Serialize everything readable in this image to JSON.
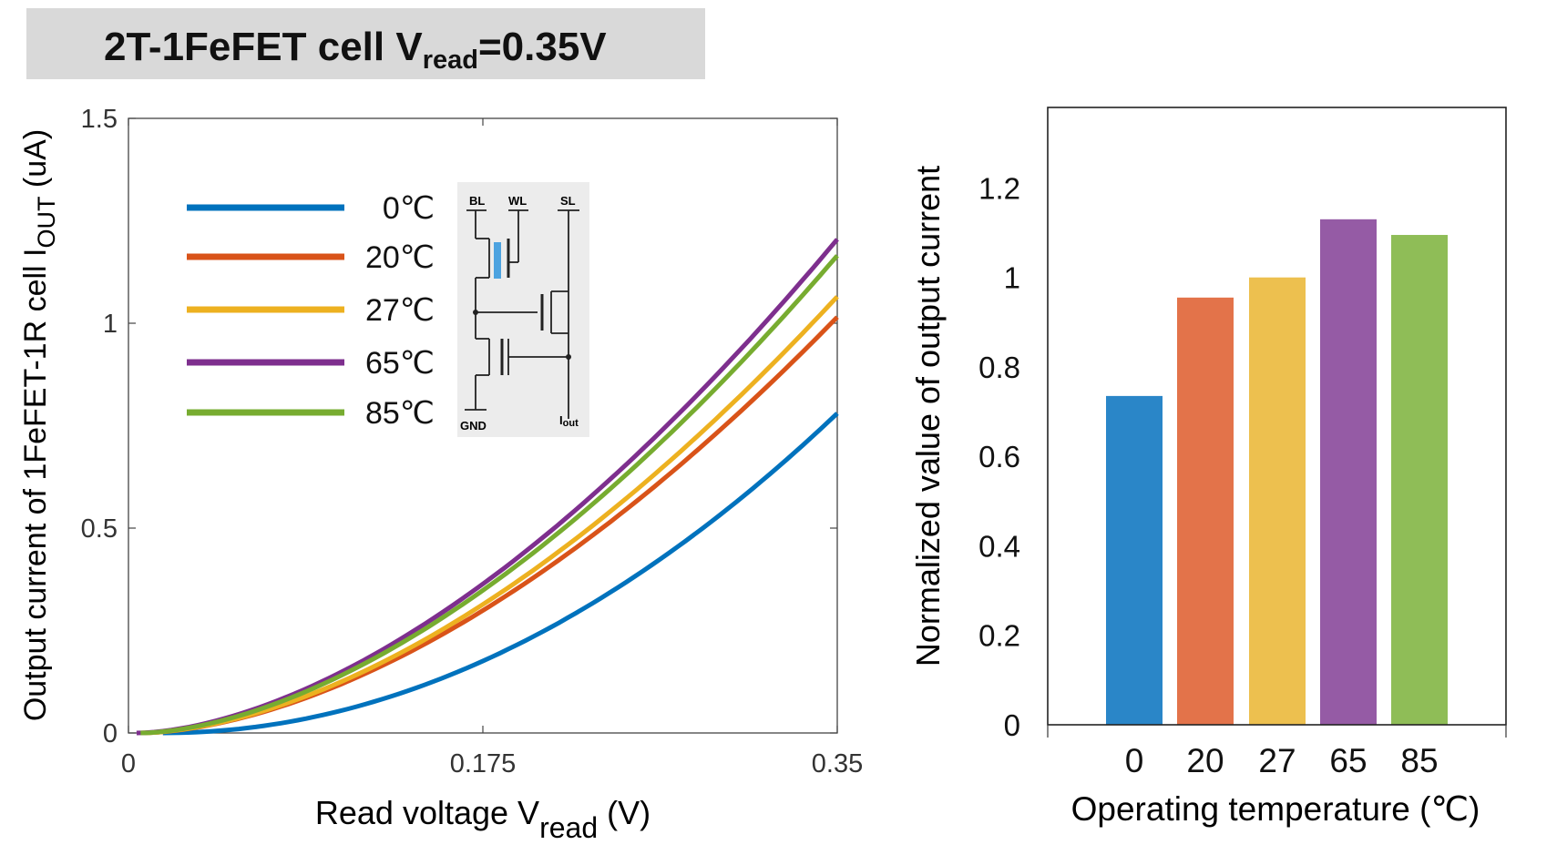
{
  "title": {
    "prefix": "2T-1FeFET cell V",
    "sub": "read",
    "suffix": "=0.35V"
  },
  "inset": {
    "labels": [
      "BL",
      "WL",
      "SL",
      "GND",
      "I",
      "out"
    ]
  },
  "chart_data": [
    {
      "type": "line",
      "xlabel": {
        "main": "Read voltage V",
        "sub": "read",
        "tail": " (V)"
      },
      "ylabel": {
        "main": "Output current of 1FeFET-1R cell I",
        "sub": "OUT",
        "tail": " (uA)"
      },
      "xlim": [
        0,
        0.35
      ],
      "ylim": [
        0,
        1.5
      ],
      "xticks": [
        0,
        0.175,
        0.35
      ],
      "xtick_labels": [
        "0",
        "0.175",
        "0.35"
      ],
      "yticks": [
        0,
        0.5,
        1,
        1.5
      ],
      "ytick_labels": [
        "0",
        "0.5",
        "1",
        "1.5"
      ],
      "series": [
        {
          "name": "0℃",
          "color": "#0072BD",
          "x0": 0.017,
          "y_end": 0.78,
          "exponent": 2.0
        },
        {
          "name": "20℃",
          "color": "#D95319",
          "x0": 0.006,
          "y_end": 1.015,
          "exponent": 1.72
        },
        {
          "name": "27℃",
          "color": "#EDB120",
          "x0": 0.006,
          "y_end": 1.065,
          "exponent": 1.72
        },
        {
          "name": "65℃",
          "color": "#7E2F8E",
          "x0": 0.004,
          "y_end": 1.205,
          "exponent": 1.7
        },
        {
          "name": "85℃",
          "color": "#77AC30",
          "x0": 0.006,
          "y_end": 1.165,
          "exponent": 1.7
        }
      ]
    },
    {
      "type": "bar",
      "xlabel": "Operating temperature (℃)",
      "ylabel": "Normalized value of output current",
      "categories": [
        "0",
        "20",
        "27",
        "65",
        "85"
      ],
      "values": [
        0.735,
        0.955,
        1.0,
        1.13,
        1.095
      ],
      "colors": [
        "#2A86C8",
        "#E3734A",
        "#EDC04F",
        "#955BA5",
        "#8FBD57"
      ],
      "ylim": [
        0,
        1.38
      ],
      "yticks": [
        0,
        0.2,
        0.4,
        0.6,
        0.8,
        1,
        1.2
      ],
      "ytick_labels": [
        "0",
        "0.2",
        "0.4",
        "0.6",
        "0.8",
        "1",
        "1.2"
      ]
    }
  ]
}
